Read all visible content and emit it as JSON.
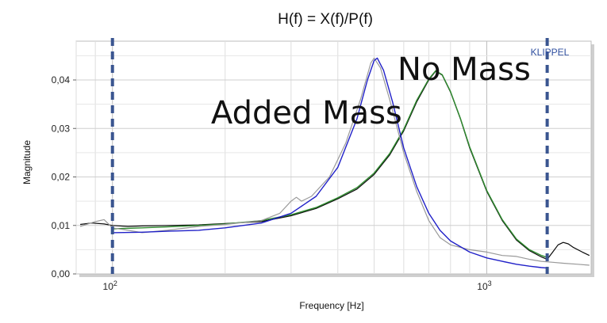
{
  "chart_data": {
    "type": "line",
    "title": "H(f) = X(f)/P(f)",
    "xlabel": "Frequency [Hz]",
    "ylabel": "Magnitude",
    "xscale": "log",
    "xlim": [
      80,
      1900
    ],
    "ylim": [
      0,
      0.048
    ],
    "x_ticks": [
      {
        "value": 100,
        "base": "10",
        "exp": "2"
      },
      {
        "value": 1000,
        "base": "10",
        "exp": "3"
      }
    ],
    "y_ticks": [
      {
        "value": 0,
        "label": "0,00"
      },
      {
        "value": 0.01,
        "label": "0,01"
      },
      {
        "value": 0.02,
        "label": "0,02"
      },
      {
        "value": 0.03,
        "label": "0,03"
      },
      {
        "value": 0.04,
        "label": "0,04"
      }
    ],
    "grid": true,
    "vertical_markers": [
      {
        "x": 100,
        "color": "#3a5590"
      },
      {
        "x": 1450,
        "color": "#3a5590"
      }
    ],
    "annotations": [
      {
        "text": "Added Mass",
        "x": 330,
        "y": 0.031
      },
      {
        "text": "No Mass",
        "x": 870,
        "y": 0.04
      }
    ],
    "brand_label": "KLIPPEL",
    "series": [
      {
        "color": "#0a0a0a",
        "width": 1.2,
        "points": [
          [
            82,
            0.0102
          ],
          [
            88,
            0.0105
          ],
          [
            95,
            0.0103
          ],
          [
            100,
            0.01
          ],
          [
            110,
            0.0098
          ],
          [
            120,
            0.0099
          ],
          [
            140,
            0.01
          ],
          [
            170,
            0.0101
          ],
          [
            200,
            0.0104
          ],
          [
            250,
            0.0108
          ],
          [
            300,
            0.012
          ],
          [
            350,
            0.0135
          ],
          [
            400,
            0.0155
          ],
          [
            450,
            0.0175
          ],
          [
            500,
            0.0205
          ],
          [
            550,
            0.0245
          ],
          [
            600,
            0.0295
          ],
          [
            650,
            0.0355
          ],
          [
            700,
            0.04
          ],
          [
            730,
            0.0418
          ],
          [
            760,
            0.041
          ],
          [
            800,
            0.0375
          ],
          [
            850,
            0.032
          ],
          [
            900,
            0.026
          ],
          [
            1000,
            0.017
          ],
          [
            1100,
            0.011
          ],
          [
            1200,
            0.007
          ],
          [
            1300,
            0.0048
          ],
          [
            1400,
            0.0035
          ],
          [
            1450,
            0.003
          ],
          [
            1500,
            0.0045
          ],
          [
            1550,
            0.006
          ],
          [
            1600,
            0.0065
          ],
          [
            1650,
            0.0062
          ],
          [
            1700,
            0.0055
          ],
          [
            1800,
            0.0045
          ],
          [
            1880,
            0.0038
          ]
        ]
      },
      {
        "color": "#2e8b2e",
        "width": 1.4,
        "points": [
          [
            100,
            0.0093
          ],
          [
            120,
            0.0095
          ],
          [
            140,
            0.0097
          ],
          [
            170,
            0.01
          ],
          [
            200,
            0.0103
          ],
          [
            250,
            0.011
          ],
          [
            300,
            0.0122
          ],
          [
            350,
            0.0137
          ],
          [
            400,
            0.0157
          ],
          [
            450,
            0.0178
          ],
          [
            500,
            0.0208
          ],
          [
            550,
            0.0248
          ],
          [
            600,
            0.0298
          ],
          [
            650,
            0.0358
          ],
          [
            700,
            0.0402
          ],
          [
            730,
            0.0419
          ],
          [
            760,
            0.0411
          ],
          [
            800,
            0.0376
          ],
          [
            850,
            0.0321
          ],
          [
            900,
            0.0262
          ],
          [
            1000,
            0.0172
          ],
          [
            1100,
            0.0112
          ],
          [
            1200,
            0.0072
          ],
          [
            1300,
            0.005
          ],
          [
            1400,
            0.0038
          ],
          [
            1450,
            0.0034
          ]
        ]
      },
      {
        "color": "#999999",
        "width": 1.2,
        "points": [
          [
            82,
            0.0098
          ],
          [
            90,
            0.0108
          ],
          [
            95,
            0.0112
          ],
          [
            100,
            0.0095
          ],
          [
            110,
            0.009
          ],
          [
            120,
            0.0085
          ],
          [
            140,
            0.009
          ],
          [
            170,
            0.0098
          ],
          [
            200,
            0.0102
          ],
          [
            250,
            0.011
          ],
          [
            280,
            0.0125
          ],
          [
            300,
            0.015
          ],
          [
            310,
            0.0158
          ],
          [
            320,
            0.015
          ],
          [
            340,
            0.016
          ],
          [
            380,
            0.02
          ],
          [
            420,
            0.027
          ],
          [
            460,
            0.036
          ],
          [
            490,
            0.0435
          ],
          [
            500,
            0.0445
          ],
          [
            520,
            0.0425
          ],
          [
            550,
            0.036
          ],
          [
            600,
            0.025
          ],
          [
            650,
            0.017
          ],
          [
            700,
            0.011
          ],
          [
            750,
            0.0075
          ],
          [
            800,
            0.006
          ],
          [
            900,
            0.005
          ],
          [
            1000,
            0.0045
          ],
          [
            1100,
            0.0038
          ],
          [
            1200,
            0.0036
          ],
          [
            1300,
            0.003
          ],
          [
            1400,
            0.0026
          ],
          [
            1500,
            0.0024
          ],
          [
            1600,
            0.0022
          ],
          [
            1750,
            0.002
          ],
          [
            1880,
            0.0018
          ]
        ]
      },
      {
        "color": "#2020c8",
        "width": 1.4,
        "points": [
          [
            100,
            0.0085
          ],
          [
            120,
            0.0086
          ],
          [
            140,
            0.0088
          ],
          [
            170,
            0.009
          ],
          [
            200,
            0.0095
          ],
          [
            250,
            0.0105
          ],
          [
            300,
            0.0125
          ],
          [
            350,
            0.016
          ],
          [
            400,
            0.022
          ],
          [
            450,
            0.032
          ],
          [
            480,
            0.04
          ],
          [
            500,
            0.044
          ],
          [
            510,
            0.0445
          ],
          [
            530,
            0.042
          ],
          [
            560,
            0.0355
          ],
          [
            600,
            0.026
          ],
          [
            650,
            0.018
          ],
          [
            700,
            0.0125
          ],
          [
            750,
            0.009
          ],
          [
            800,
            0.0068
          ],
          [
            900,
            0.0045
          ],
          [
            1000,
            0.0033
          ],
          [
            1100,
            0.0026
          ],
          [
            1200,
            0.002
          ],
          [
            1300,
            0.0016
          ],
          [
            1400,
            0.0013
          ],
          [
            1450,
            0.0012
          ]
        ]
      }
    ]
  }
}
